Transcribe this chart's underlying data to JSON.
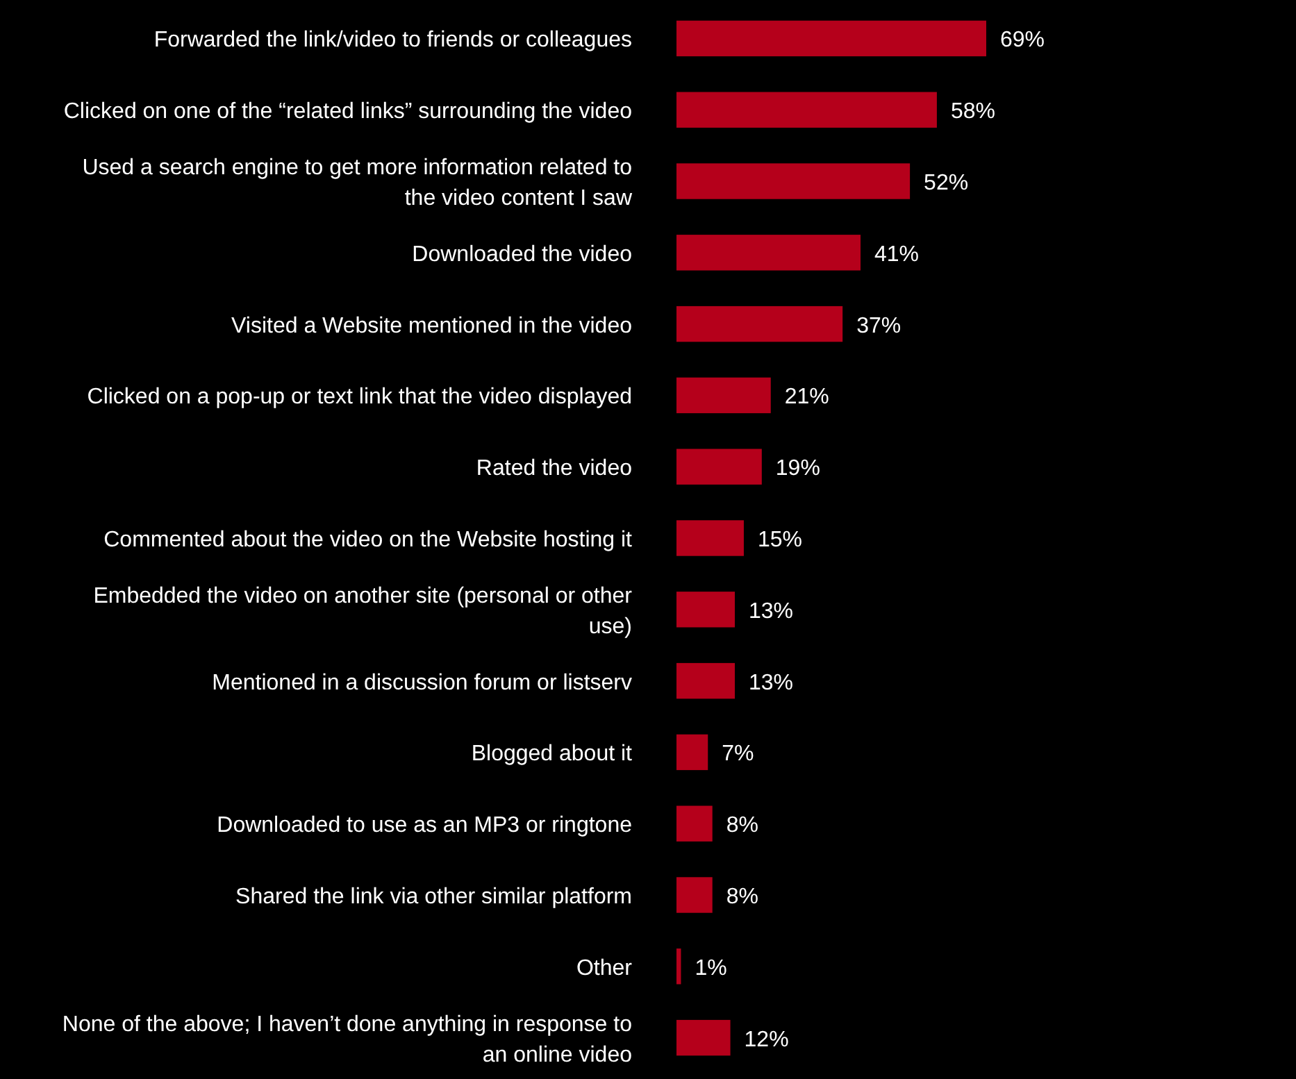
{
  "chart_data": {
    "type": "bar",
    "orientation": "horizontal",
    "color": "#b5001b",
    "categories": [
      "Forwarded the link/video to friends or colleagues",
      "Clicked on one of the “related links” surrounding the video",
      "Used a search engine to get more information related to the video content I saw",
      "Downloaded the video",
      "Visited a Website mentioned in the video",
      "Clicked on a pop-up or text link that the video displayed",
      "Rated the video",
      "Commented about the video on the Website hosting it",
      "Embedded the video on another site (personal or other use)",
      "Mentioned in a discussion forum or listserv",
      "Blogged about it",
      "Downloaded to use as an MP3 or ringtone",
      "Shared the link via other similar platform",
      "Other",
      "None of the above; I haven’t done anything in response to an online video"
    ],
    "values": [
      69,
      58,
      52,
      41,
      37,
      21,
      19,
      15,
      13,
      13,
      7,
      8,
      8,
      1,
      12
    ],
    "value_labels": [
      "69%",
      "58%",
      "52%",
      "41%",
      "37%",
      "21%",
      "19%",
      "15%",
      "13%",
      "13%",
      "7%",
      "8%",
      "8%",
      "1%",
      "12%"
    ]
  }
}
